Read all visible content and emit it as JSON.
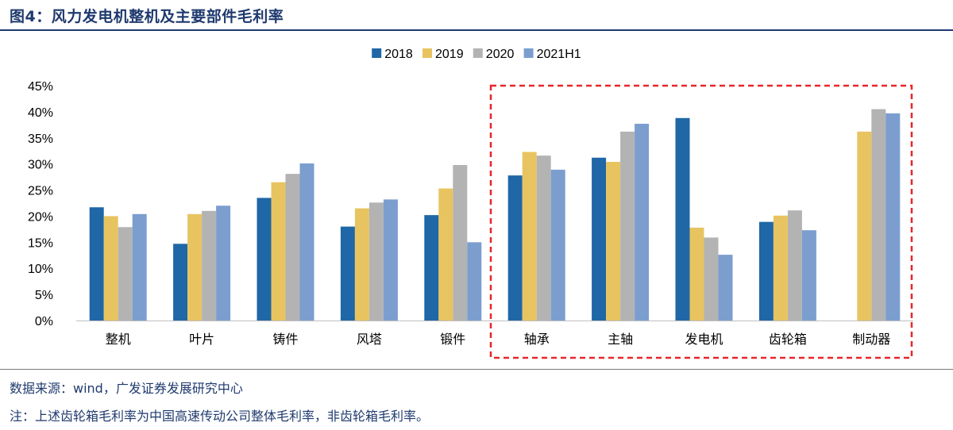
{
  "figure": {
    "title": "图4：风力发电机整机及主要部件毛利率",
    "source": "数据来源：wind，广发证券发展研究中心",
    "note": "注：上述齿轮箱毛利率为中国高速传动公司整体毛利率，非齿轮箱毛利率。"
  },
  "chart_data": {
    "type": "bar",
    "title": "",
    "xlabel": "",
    "ylabel": "",
    "ylim": [
      0,
      45
    ],
    "y_ticks": [
      "0%",
      "5%",
      "10%",
      "15%",
      "20%",
      "25%",
      "30%",
      "35%",
      "40%",
      "45%"
    ],
    "categories": [
      "整机",
      "叶片",
      "铸件",
      "风塔",
      "锻件",
      "轴承",
      "主轴",
      "发电机",
      "齿轮箱",
      "制动器"
    ],
    "series": [
      {
        "name": "2018",
        "color": "#1f67a6",
        "values": [
          21.7,
          14.7,
          23.5,
          18.0,
          20.2,
          27.8,
          31.2,
          38.8,
          18.9,
          null
        ]
      },
      {
        "name": "2019",
        "color": "#e8c460",
        "values": [
          20.0,
          20.4,
          26.5,
          21.5,
          25.3,
          32.3,
          30.4,
          17.8,
          20.1,
          36.2
        ]
      },
      {
        "name": "2020",
        "color": "#b3b3b3",
        "values": [
          17.9,
          21.0,
          28.1,
          22.6,
          29.8,
          31.6,
          36.2,
          15.9,
          21.1,
          40.5
        ]
      },
      {
        "name": "2021H1",
        "color": "#7b9ecf",
        "values": [
          20.4,
          22.0,
          30.1,
          23.2,
          15.0,
          28.9,
          37.7,
          12.6,
          17.3,
          39.7
        ]
      }
    ],
    "legend_position": "top",
    "highlight": {
      "from_category": "轴承",
      "to_category": "制动器",
      "style": "red-dashed-box",
      "color": "#e8262a"
    }
  }
}
